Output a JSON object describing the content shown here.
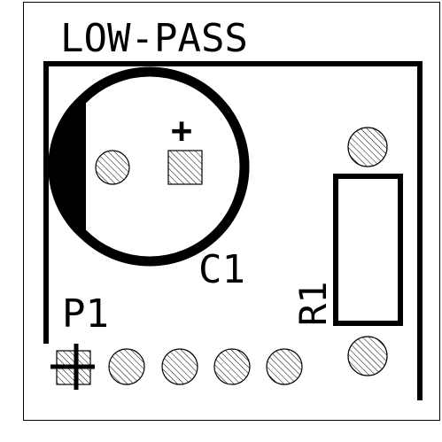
{
  "board": {
    "title": "LOW-PASS",
    "colors": {
      "background": "#ffffff",
      "silkscreen": "#000000",
      "pad_fill": "#ffffff",
      "pad_hatch": "#000000"
    }
  },
  "components": {
    "capacitor": {
      "designator": "C1",
      "polarity_mark": "+",
      "type": "polarized-electrolytic-capacitor"
    },
    "resistor": {
      "designator": "R1",
      "type": "axial-resistor",
      "label_orientation": "vertical"
    },
    "header": {
      "designator": "P1",
      "type": "5-pin-header",
      "pin_count": 5,
      "pin1_shape": "square"
    }
  }
}
